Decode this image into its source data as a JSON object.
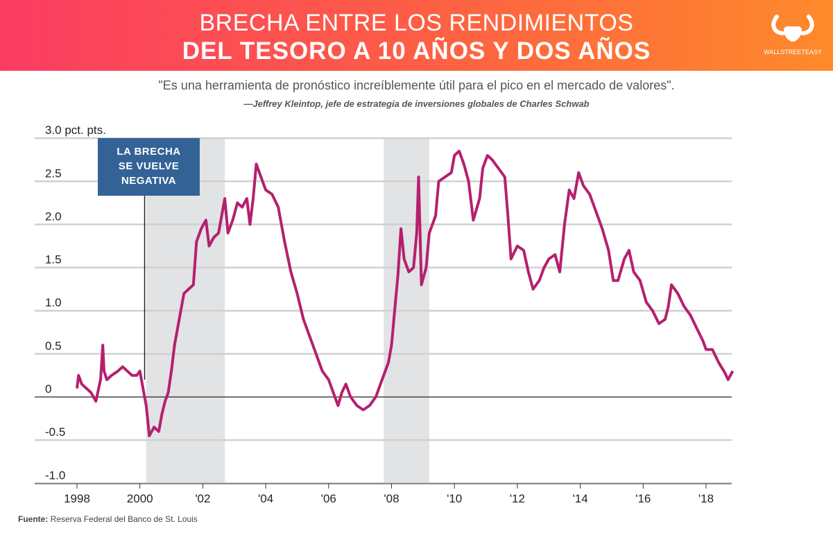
{
  "header": {
    "title_line1": "BRECHA ENTRE LOS RENDIMIENTOS",
    "title_line2": "DEL TESORO A 10 AÑOS Y DOS AÑOS",
    "logo_text": "WALLSTREETEASY",
    "gradient_colors": [
      "#fb3d62",
      "#fe8a2a"
    ]
  },
  "quote": "\"Es una herramienta de pronóstico increíblemente útil para el pico en el mercado de valores\".",
  "author": "—Jeffrey Kleintop, jefe de estrategia de inversiones globales de Charles Schwab",
  "source": {
    "label": "Fuente:",
    "text": " Reserva Federal del Banco de St. Louis"
  },
  "chart_data": {
    "type": "line",
    "ylabel": "pct. pts.",
    "ylim": [
      -1.0,
      3.0
    ],
    "xlim": [
      1997.9,
      2018.9
    ],
    "yticks": [
      {
        "v": 3.0,
        "label": "3.0"
      },
      {
        "v": 2.5,
        "label": "2.5"
      },
      {
        "v": 2.0,
        "label": "2.0"
      },
      {
        "v": 1.5,
        "label": "1.5"
      },
      {
        "v": 1.0,
        "label": "1.0"
      },
      {
        "v": 0.5,
        "label": "0.5"
      },
      {
        "v": 0,
        "label": "0"
      },
      {
        "v": -0.5,
        "label": "-0.5"
      },
      {
        "v": -1.0,
        "label": "-1.0"
      }
    ],
    "xticks": [
      {
        "v": 1998,
        "label": "1998"
      },
      {
        "v": 2000,
        "label": "2000"
      },
      {
        "v": 2002,
        "label": "'02"
      },
      {
        "v": 2004,
        "label": "'04"
      },
      {
        "v": 2006,
        "label": "'06"
      },
      {
        "v": 2008,
        "label": "'08"
      },
      {
        "v": 2010,
        "label": "'10"
      },
      {
        "v": 2012,
        "label": "'12"
      },
      {
        "v": 2014,
        "label": "'14"
      },
      {
        "v": 2016,
        "label": "'16"
      },
      {
        "v": 2018,
        "label": "'18"
      }
    ],
    "grid": true,
    "line_color": "#b5206e",
    "shaded_periods": [
      [
        2000.2,
        2002.7
      ],
      [
        2007.75,
        2009.2
      ]
    ],
    "annotation": {
      "text_lines": [
        "LA BRECHA",
        "SE VUELVE",
        "NEGATIVA"
      ],
      "x": 2000.15,
      "color": "#336396"
    },
    "series": [
      {
        "x": [
          1998.0,
          1998.05,
          1998.15,
          1998.3,
          1998.45,
          1998.6,
          1998.75,
          1998.82,
          1998.86,
          1998.95,
          1999.1,
          1999.3,
          1999.45,
          1999.6,
          1999.75,
          1999.9,
          2000.0,
          2000.1,
          2000.2,
          2000.3,
          2000.45,
          2000.6,
          2000.7,
          2000.8,
          2000.9,
          2001.0,
          2001.1,
          2001.25,
          2001.4,
          2001.55,
          2001.7,
          2001.8,
          2001.95,
          2002.1,
          2002.2,
          2002.35,
          2002.5,
          2002.6,
          2002.7,
          2002.8,
          2002.95,
          2003.1,
          2003.25,
          2003.4,
          2003.5,
          2003.6,
          2003.7,
          2003.8,
          2004.0,
          2004.2,
          2004.4,
          2004.6,
          2004.8,
          2005.0,
          2005.2,
          2005.4,
          2005.6,
          2005.8,
          2006.0,
          2006.15,
          2006.3,
          2006.42,
          2006.55,
          2006.7,
          2006.9,
          2007.1,
          2007.3,
          2007.5,
          2007.7,
          2007.9,
          2008.0,
          2008.1,
          2008.2,
          2008.3,
          2008.4,
          2008.55,
          2008.7,
          2008.8,
          2008.86,
          2008.95,
          2009.1,
          2009.2,
          2009.4,
          2009.5,
          2009.7,
          2009.9,
          2010.0,
          2010.15,
          2010.3,
          2010.45,
          2010.6,
          2010.8,
          2010.9,
          2011.05,
          2011.2,
          2011.4,
          2011.6,
          2011.7,
          2011.8,
          2012.0,
          2012.2,
          2012.35,
          2012.5,
          2012.7,
          2012.85,
          2013.0,
          2013.2,
          2013.35,
          2013.5,
          2013.65,
          2013.8,
          2013.95,
          2014.1,
          2014.3,
          2014.5,
          2014.7,
          2014.9,
          2015.05,
          2015.2,
          2015.4,
          2015.55,
          2015.7,
          2015.9,
          2016.1,
          2016.3,
          2016.5,
          2016.7,
          2016.8,
          2016.9,
          2017.1,
          2017.3,
          2017.5,
          2017.7,
          2017.9,
          2018.0,
          2018.2,
          2018.4,
          2018.6,
          2018.7,
          2018.85
        ],
        "y": [
          0.1,
          0.25,
          0.15,
          0.1,
          0.05,
          -0.05,
          0.2,
          0.6,
          0.3,
          0.2,
          0.25,
          0.3,
          0.35,
          0.3,
          0.25,
          0.25,
          0.3,
          0.1,
          -0.1,
          -0.45,
          -0.35,
          -0.4,
          -0.2,
          -0.05,
          0.05,
          0.3,
          0.6,
          0.9,
          1.2,
          1.25,
          1.3,
          1.8,
          1.95,
          2.05,
          1.75,
          1.85,
          1.9,
          2.1,
          2.3,
          1.9,
          2.05,
          2.25,
          2.2,
          2.3,
          2.0,
          2.3,
          2.7,
          2.6,
          2.4,
          2.35,
          2.2,
          1.8,
          1.45,
          1.2,
          0.9,
          0.7,
          0.5,
          0.3,
          0.2,
          0.05,
          -0.1,
          0.05,
          0.15,
          0.0,
          -0.1,
          -0.15,
          -0.1,
          0.0,
          0.2,
          0.4,
          0.6,
          1.0,
          1.4,
          1.95,
          1.6,
          1.45,
          1.5,
          1.9,
          2.55,
          1.3,
          1.5,
          1.9,
          2.1,
          2.5,
          2.55,
          2.6,
          2.8,
          2.85,
          2.7,
          2.5,
          2.05,
          2.3,
          2.65,
          2.8,
          2.75,
          2.65,
          2.55,
          2.1,
          1.6,
          1.75,
          1.7,
          1.45,
          1.25,
          1.35,
          1.5,
          1.6,
          1.65,
          1.45,
          2.0,
          2.4,
          2.3,
          2.6,
          2.45,
          2.35,
          2.15,
          1.95,
          1.7,
          1.35,
          1.35,
          1.6,
          1.7,
          1.45,
          1.35,
          1.1,
          1.0,
          0.85,
          0.9,
          1.05,
          1.3,
          1.2,
          1.05,
          0.95,
          0.8,
          0.65,
          0.55,
          0.55,
          0.4,
          0.28,
          0.2,
          0.3
        ]
      }
    ]
  }
}
